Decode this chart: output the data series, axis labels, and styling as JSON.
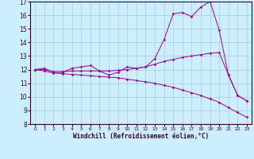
{
  "xlabel": "Windchill (Refroidissement éolien,°C)",
  "bg_color": "#cceeff",
  "grid_color": "#aacccc",
  "line_color": "#990099",
  "xlim": [
    -0.5,
    23.5
  ],
  "ylim": [
    8,
    17
  ],
  "yticks": [
    8,
    9,
    10,
    11,
    12,
    13,
    14,
    15,
    16,
    17
  ],
  "xticks": [
    0,
    1,
    2,
    3,
    4,
    5,
    6,
    7,
    8,
    9,
    10,
    11,
    12,
    13,
    14,
    15,
    16,
    17,
    18,
    19,
    20,
    21,
    22,
    23
  ],
  "series1_x": [
    0,
    1,
    2,
    3,
    4,
    5,
    6,
    7,
    8,
    9,
    10,
    11,
    12,
    13,
    14,
    15,
    16,
    17,
    18,
    19,
    20,
    21,
    22,
    23
  ],
  "series1_y": [
    12.0,
    12.1,
    11.8,
    11.8,
    12.1,
    12.2,
    12.3,
    11.9,
    11.6,
    11.8,
    12.2,
    12.1,
    12.2,
    12.8,
    14.2,
    16.1,
    16.2,
    15.9,
    16.6,
    17.0,
    14.9,
    11.6,
    10.1,
    9.7
  ],
  "series2_x": [
    0,
    1,
    2,
    3,
    4,
    5,
    6,
    7,
    8,
    9,
    10,
    11,
    12,
    13,
    14,
    15,
    16,
    17,
    18,
    19,
    20,
    21,
    22,
    23
  ],
  "series2_y": [
    12.0,
    12.0,
    11.85,
    11.85,
    11.9,
    11.9,
    11.9,
    11.9,
    11.9,
    11.95,
    12.0,
    12.1,
    12.2,
    12.4,
    12.6,
    12.75,
    12.9,
    13.0,
    13.1,
    13.2,
    13.25,
    11.6,
    10.1,
    9.7
  ],
  "series3_x": [
    0,
    1,
    2,
    3,
    4,
    5,
    6,
    7,
    8,
    9,
    10,
    11,
    12,
    13,
    14,
    15,
    16,
    17,
    18,
    19,
    20,
    21,
    22,
    23
  ],
  "series3_y": [
    12.0,
    11.9,
    11.75,
    11.7,
    11.65,
    11.6,
    11.55,
    11.5,
    11.45,
    11.4,
    11.3,
    11.2,
    11.1,
    11.0,
    10.85,
    10.7,
    10.5,
    10.3,
    10.1,
    9.85,
    9.6,
    9.2,
    8.85,
    8.5
  ]
}
